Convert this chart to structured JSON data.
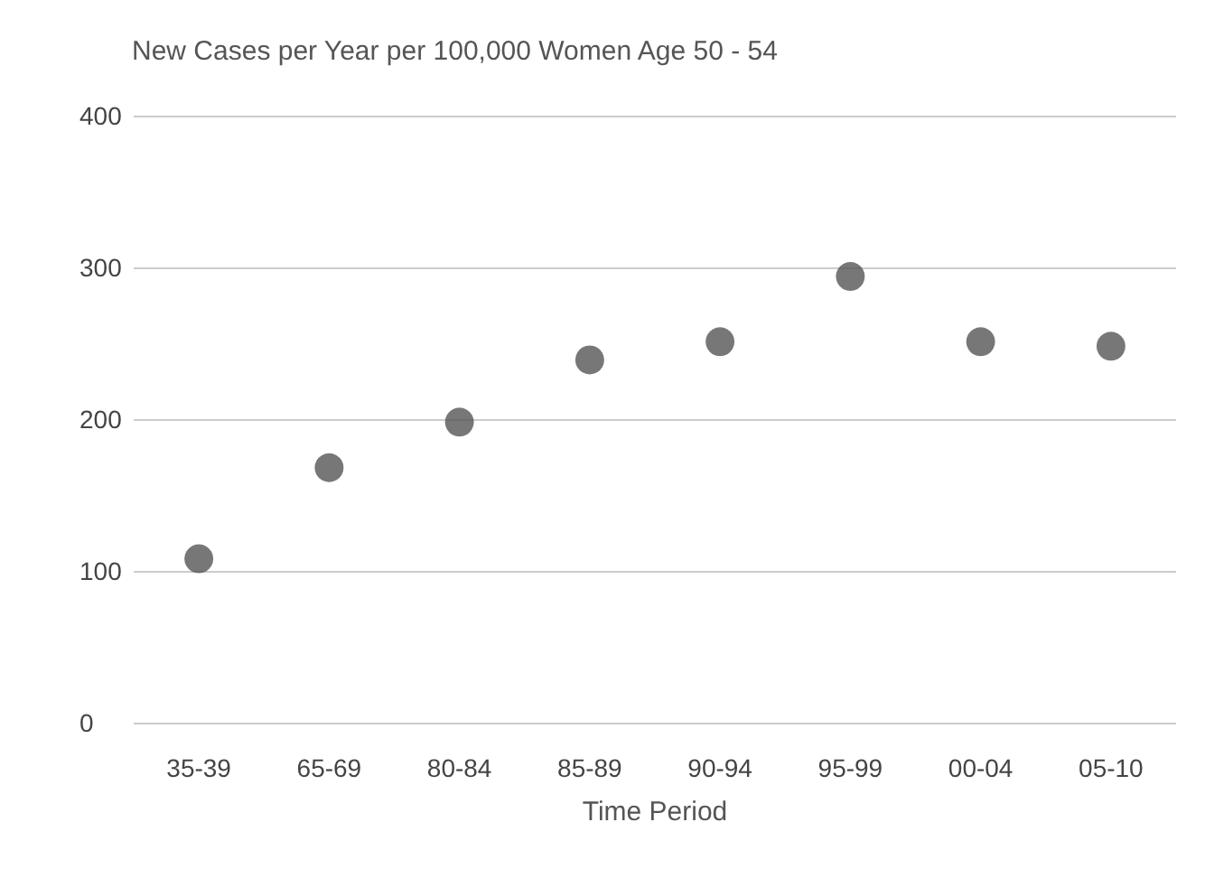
{
  "chart_data": {
    "type": "scatter",
    "title": "New Cases per Year per 100,000 Women Age 50 - 54",
    "xlabel": "Time Period",
    "categories": [
      "35-39",
      "65-69",
      "80-84",
      "85-89",
      "90-94",
      "95-99",
      "00-04",
      "05-10"
    ],
    "series": [
      {
        "color": "#555555",
        "values": [
          108,
          168,
          198,
          239,
          251,
          294,
          251,
          248
        ]
      }
    ],
    "ylim": [
      0,
      400
    ],
    "yticks": [
      0,
      100,
      200,
      300,
      400
    ],
    "grid": "y",
    "marker": "circle"
  }
}
